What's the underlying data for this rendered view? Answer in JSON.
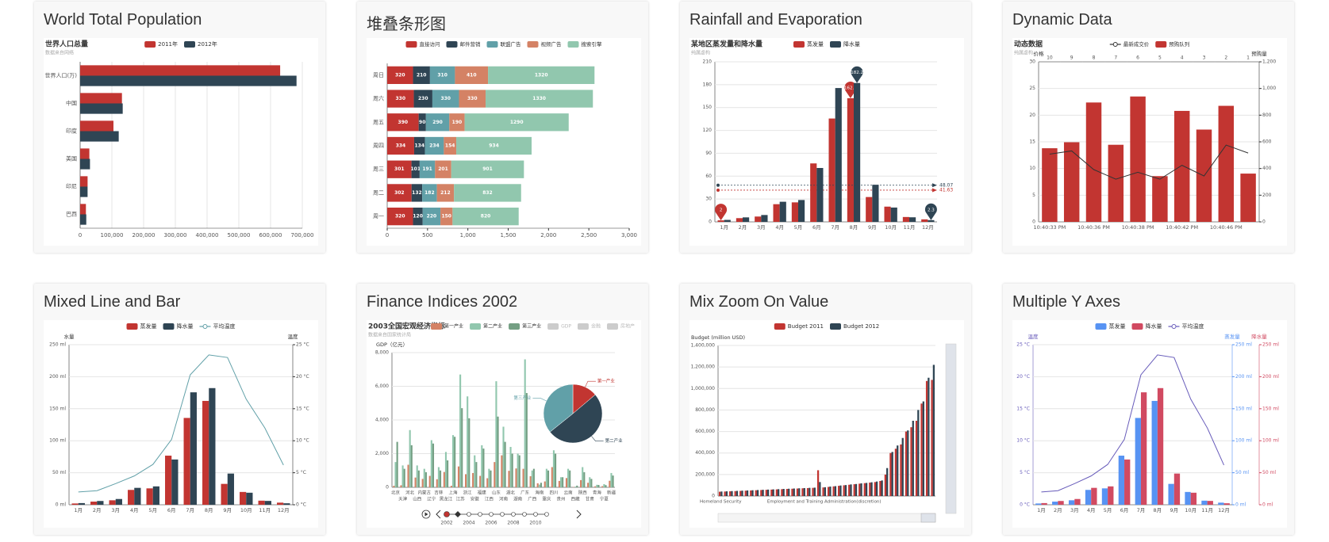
{
  "chart_data": [
    {
      "type": "bar",
      "heading": "World Total Population",
      "title": "世界人口总量",
      "subtitle": "数据来自网络",
      "horizontal": true,
      "grid": true,
      "categories": [
        "巴西",
        "印尼",
        "美国",
        "印度",
        "中国",
        "世界人口(万)"
      ],
      "series": [
        {
          "name": "2011年",
          "color": "#c23531",
          "values": [
            18203,
            23489,
            29034,
            104970,
            131744,
            630230
          ]
        },
        {
          "name": "2012年",
          "color": "#2f4554",
          "values": [
            19325,
            23438,
            31000,
            121594,
            134141,
            681807
          ]
        }
      ],
      "xlim": [
        0,
        700000
      ],
      "xticks": [
        0,
        {
          "value": 100000,
          "label": "100,000"
        },
        {
          "value": 200000,
          "label": "200,000"
        },
        {
          "value": 300000,
          "label": "300,000"
        },
        {
          "value": 400000,
          "label": "400,000"
        },
        {
          "value": 500000,
          "label": "500,000"
        },
        {
          "value": 600000,
          "label": "600,000"
        },
        {
          "value": 700000,
          "label": "700,000"
        }
      ]
    },
    {
      "type": "bar",
      "heading": "堆叠条形图",
      "horizontal": true,
      "stacked": true,
      "show_labels": true,
      "grid": false,
      "categories": [
        "周一",
        "周二",
        "周三",
        "周四",
        "周五",
        "周六",
        "周日"
      ],
      "series": [
        {
          "name": "直接访问",
          "color": "#c23531",
          "values": [
            320,
            302,
            301,
            334,
            390,
            330,
            320
          ]
        },
        {
          "name": "邮件营销",
          "color": "#2f4554",
          "values": [
            120,
            132,
            101,
            134,
            90,
            230,
            210
          ]
        },
        {
          "name": "联盟广告",
          "color": "#61a0a8",
          "values": [
            220,
            182,
            191,
            234,
            290,
            330,
            310
          ]
        },
        {
          "name": "视频广告",
          "color": "#d48265",
          "values": [
            150,
            212,
            201,
            154,
            190,
            330,
            410
          ]
        },
        {
          "name": "搜索引擎",
          "color": "#91c7ae",
          "values": [
            820,
            832,
            901,
            934,
            1290,
            1330,
            1320
          ]
        }
      ],
      "xlim": [
        0,
        3000
      ],
      "xticks": [
        0,
        500,
        {
          "value": 1000,
          "label": "1,000"
        },
        {
          "value": 1500,
          "label": "1,500"
        },
        {
          "value": 2000,
          "label": "2,000"
        },
        {
          "value": 2500,
          "label": "2,500"
        },
        {
          "value": 3000,
          "label": "3,000"
        }
      ]
    },
    {
      "type": "bar",
      "heading": "Rainfall and Evaporation",
      "title": "某地区蒸发量和降水量",
      "subtitle": "纯属虚构",
      "grid": true,
      "categories": [
        "1月",
        "2月",
        "3月",
        "4月",
        "5月",
        "6月",
        "7月",
        "8月",
        "9月",
        "10月",
        "11月",
        "12月"
      ],
      "series": [
        {
          "name": "蒸发量",
          "color": "#c23531",
          "values": [
            2.0,
            4.9,
            7.0,
            23.2,
            25.6,
            76.7,
            135.6,
            162.2,
            32.6,
            20.0,
            6.4,
            3.3
          ],
          "mark_points": [
            "max",
            "min"
          ],
          "average": 41.63
        },
        {
          "name": "降水量",
          "color": "#2f4554",
          "values": [
            2.6,
            5.9,
            9.0,
            26.4,
            28.7,
            70.7,
            175.6,
            182.2,
            48.7,
            18.8,
            6.0,
            2.3
          ],
          "mark_points": [
            "max",
            "min"
          ],
          "average": 48.07
        }
      ],
      "ylim": [
        0,
        210
      ],
      "yticks": [
        0,
        30,
        60,
        90,
        120,
        150,
        180,
        210
      ]
    },
    {
      "type": "bar",
      "heading": "Dynamic Data",
      "title": "动态数据",
      "subtitle": "纯属虚构",
      "grid": true,
      "categories": [
        "10:40:33 PM",
        null,
        "10:40:36 PM",
        null,
        "10:40:38 PM",
        null,
        "10:40:42 PM",
        null,
        "10:40:46 PM",
        null
      ],
      "top_categories": [
        10,
        9,
        8,
        7,
        6,
        5,
        4,
        3,
        2,
        1
      ],
      "series": [
        {
          "name": "最新成交价",
          "type": "line",
          "color": "#333333",
          "values": [
            12.7,
            13.3,
            9.8,
            8.0,
            9.3,
            8.0,
            10.6,
            8.6,
            14.4,
            12.9
          ]
        },
        {
          "name": "预购队列",
          "color": "#c23531",
          "axis": "y2",
          "values": [
            552,
            597,
            895,
            578,
            940,
            343,
            832,
            692,
            870,
            362
          ]
        }
      ],
      "y_name": "价格",
      "y2_name": "预购量",
      "ylim": [
        0,
        30
      ],
      "yticks": [
        0,
        5,
        10,
        15,
        20,
        25,
        30
      ],
      "y2lim": [
        0,
        1200
      ],
      "y2ticks": [
        0,
        200,
        400,
        600,
        800,
        {
          "value": 1000,
          "label": "1,000"
        },
        {
          "value": 1200,
          "label": "1,200"
        }
      ]
    },
    {
      "type": "bar",
      "heading": "Mixed Line and Bar",
      "grid": true,
      "categories": [
        "1月",
        "2月",
        "3月",
        "4月",
        "5月",
        "6月",
        "7月",
        "8月",
        "9月",
        "10月",
        "11月",
        "12月"
      ],
      "series": [
        {
          "name": "蒸发量",
          "color": "#c23531",
          "values": [
            2.0,
            4.9,
            7.0,
            23.2,
            25.6,
            76.7,
            135.6,
            162.2,
            32.6,
            20.0,
            6.4,
            3.3
          ]
        },
        {
          "name": "降水量",
          "color": "#2f4554",
          "values": [
            2.6,
            5.9,
            9.0,
            26.4,
            28.7,
            70.7,
            175.6,
            182.2,
            48.7,
            18.8,
            6.0,
            2.3
          ]
        },
        {
          "name": "平均温度",
          "type": "line",
          "color": "#61a0a8",
          "axis": "y2",
          "values": [
            2.0,
            2.2,
            3.3,
            4.5,
            6.3,
            10.2,
            20.3,
            23.4,
            23.0,
            16.5,
            12.0,
            6.2
          ]
        }
      ],
      "y_name": "水量",
      "y2_name": "温度",
      "ylim": [
        0,
        250
      ],
      "yticks": [
        {
          "value": 0,
          "label": "0 ml"
        },
        {
          "value": 50,
          "label": "50 ml"
        },
        {
          "value": 100,
          "label": "100 ml"
        },
        {
          "value": 150,
          "label": "150 ml"
        },
        {
          "value": 200,
          "label": "200 ml"
        },
        {
          "value": 250,
          "label": "250 ml"
        }
      ],
      "y2lim": [
        0,
        25
      ],
      "y2ticks": [
        {
          "value": 0,
          "label": "0 °C"
        },
        {
          "value": 5,
          "label": "5 °C"
        },
        {
          "value": 10,
          "label": "10 °C"
        },
        {
          "value": 15,
          "label": "15 °C"
        },
        {
          "value": 20,
          "label": "20 °C"
        },
        {
          "value": 25,
          "label": "25 °C"
        }
      ]
    },
    {
      "type": "bar",
      "heading": "Finance Indices 2002",
      "title": "2003全国宏观经济指标",
      "subtitle": "数据来自国家统计局",
      "grid": true,
      "categories": [
        "北京",
        "天津",
        "河北",
        "山西",
        "内蒙古",
        "辽宁",
        "吉林",
        "黑龙江",
        "上海",
        "江苏",
        "浙江",
        "安徽",
        "福建",
        "江西",
        "山东",
        "河南",
        "湖北",
        "湖南",
        "广东",
        "广西",
        "海南",
        "重庆",
        "四川",
        "贵州",
        "云南",
        "西藏",
        "陕西",
        "甘肃",
        "青海",
        "宁夏",
        "新疆"
      ],
      "series": [
        {
          "name": "第一产业",
          "color": "#d48265",
          "values": [
            90,
            120,
            1340,
            580,
            500,
            680,
            480,
            910,
            90,
            1240,
            780,
            850,
            680,
            540,
            1500,
            1900,
            980,
            1120,
            1100,
            660,
            240,
            350,
            1200,
            380,
            550,
            20,
            430,
            270,
            60,
            70,
            390
          ]
        },
        {
          "name": "第二产业",
          "color": "#91c7ae",
          "values": [
            1500,
            1300,
            3400,
            1300,
            1100,
            2800,
            1200,
            2100,
            3100,
            6700,
            5400,
            1900,
            2500,
            1100,
            6300,
            3600,
            2400,
            2000,
            7600,
            1000,
            160,
            1100,
            2200,
            600,
            1100,
            40,
            1200,
            600,
            150,
            190,
            850
          ]
        },
        {
          "name": "第三产业",
          "color": "#749f83",
          "values": [
            2700,
            1100,
            2500,
            1000,
            900,
            2600,
            1000,
            1600,
            3000,
            4700,
            4100,
            1500,
            2300,
            1000,
            4200,
            2700,
            2000,
            1900,
            5600,
            1100,
            270,
            1000,
            2000,
            600,
            1000,
            100,
            900,
            500,
            140,
            130,
            700
          ]
        }
      ],
      "legend_extra": [
        "GDP",
        "金融",
        "房地产"
      ],
      "y_name": "GDP（亿元）",
      "ylim": [
        0,
        8000
      ],
      "yticks": [
        0,
        {
          "value": 2000,
          "label": "2,000"
        },
        {
          "value": 4000,
          "label": "4,000"
        },
        {
          "value": 6000,
          "label": "6,000"
        },
        {
          "value": 8000,
          "label": "8,000"
        }
      ],
      "pie": {
        "labels": [
          "第一产业",
          "第二产业",
          "第三产业"
        ],
        "values": [
          17000,
          62000,
          44000
        ],
        "colors": [
          "#c23531",
          "#2f4554",
          "#61a0a8"
        ]
      },
      "timeline": {
        "labels": [
          2002,
          null,
          2004,
          null,
          2006,
          null,
          2008,
          null,
          2010,
          null
        ],
        "current": 1
      }
    },
    {
      "type": "bar",
      "heading": "Mix Zoom On Value",
      "grid": true,
      "data_zoom": true,
      "categories": [
        "Homeland Security",
        null,
        null,
        null,
        null,
        null,
        null,
        null,
        null,
        null,
        null,
        null,
        null,
        null,
        null,
        null,
        null,
        null,
        null,
        null,
        "Employment and Training Administration(discretion)",
        null,
        null,
        null,
        null,
        null,
        null,
        null,
        null,
        null,
        null,
        null,
        null,
        null,
        null,
        null,
        null,
        null,
        null,
        null,
        null,
        null
      ],
      "series": [
        {
          "name": "Budget 2011",
          "color": "#c23531",
          "values": [
            40000,
            42000,
            44000,
            46000,
            48000,
            50000,
            52000,
            54000,
            56000,
            58000,
            60000,
            62000,
            64000,
            66000,
            68000,
            70000,
            72000,
            74000,
            76000,
            240000,
            80000,
            85000,
            90000,
            95000,
            100000,
            105000,
            110000,
            115000,
            120000,
            125000,
            130000,
            140000,
            200000,
            400000,
            440000,
            480000,
            600000,
            640000,
            700000,
            860000,
            1070000,
            1080000
          ]
        },
        {
          "name": "Budget 2012",
          "color": "#2f4554",
          "values": [
            42000,
            44000,
            46000,
            48000,
            50000,
            52000,
            54000,
            56000,
            58000,
            60000,
            62000,
            64000,
            66000,
            68000,
            70000,
            72000,
            74000,
            76000,
            78000,
            130000,
            82000,
            88000,
            92000,
            98000,
            102000,
            108000,
            112000,
            118000,
            122000,
            128000,
            135000,
            145000,
            260000,
            410000,
            470000,
            540000,
            610000,
            700000,
            800000,
            880000,
            1100000,
            1220000
          ]
        }
      ],
      "y_name": "Budget (million USD)",
      "ylim": [
        0,
        1400000
      ],
      "yticks": [
        0,
        {
          "value": 200000,
          "label": "200,000"
        },
        {
          "value": 400000,
          "label": "400,000"
        },
        {
          "value": 600000,
          "label": "600,000"
        },
        {
          "value": 800000,
          "label": "800,000"
        },
        {
          "value": 1000000,
          "label": "1,000,000"
        },
        {
          "value": 1200000,
          "label": "1,200,000"
        },
        {
          "value": 1400000,
          "label": "1,400,000"
        }
      ]
    },
    {
      "type": "bar",
      "heading": "Multiple Y Axes",
      "grid": true,
      "categories": [
        "1月",
        "2月",
        "3月",
        "4月",
        "5月",
        "6月",
        "7月",
        "8月",
        "9月",
        "10月",
        "11月",
        "12月"
      ],
      "series": [
        {
          "name": "蒸发量",
          "color": "#5793f3",
          "axis": "y2",
          "values": [
            2.0,
            4.9,
            7.0,
            23.2,
            25.6,
            76.7,
            135.6,
            162.2,
            32.6,
            20.0,
            6.4,
            3.3
          ]
        },
        {
          "name": "降水量",
          "color": "#d14a61",
          "axis": "y3",
          "values": [
            2.6,
            5.9,
            9.0,
            26.4,
            28.7,
            70.7,
            175.6,
            182.2,
            48.7,
            18.8,
            6.0,
            2.3
          ]
        },
        {
          "name": "平均温度",
          "type": "line",
          "color": "#675bba",
          "values": [
            2.0,
            2.2,
            3.3,
            4.5,
            6.3,
            10.2,
            20.3,
            23.4,
            23.0,
            16.5,
            12.0,
            6.2
          ]
        }
      ],
      "y_name": "温度",
      "y2_name": "蒸发量",
      "y3_name": "降水量",
      "axis_colors": {
        "y": "#675bba",
        "y2": "#5793f3",
        "y3": "#d14a61"
      },
      "ylim": [
        0,
        25
      ],
      "yticks": [
        {
          "value": 0,
          "label": "0 °C"
        },
        {
          "value": 5,
          "label": "5 °C"
        },
        {
          "value": 10,
          "label": "10 °C"
        },
        {
          "value": 15,
          "label": "15 °C"
        },
        {
          "value": 20,
          "label": "20 °C"
        },
        {
          "value": 25,
          "label": "25 °C"
        }
      ],
      "y2lim": [
        0,
        250
      ],
      "y2ticks": [
        {
          "value": 0,
          "label": "0 ml"
        },
        {
          "value": 50,
          "label": "50 ml"
        },
        {
          "value": 100,
          "label": "100 ml"
        },
        {
          "value": 150,
          "label": "150 ml"
        },
        {
          "value": 200,
          "label": "200 ml"
        },
        {
          "value": 250,
          "label": "250 ml"
        }
      ],
      "y3lim": [
        0,
        250
      ],
      "y3ticks": [
        {
          "value": 0,
          "label": "0 ml"
        },
        {
          "value": 50,
          "label": "50 ml"
        },
        {
          "value": 100,
          "label": "100 ml"
        },
        {
          "value": 150,
          "label": "150 ml"
        },
        {
          "value": 200,
          "label": "200 ml"
        },
        {
          "value": 250,
          "label": "250 ml"
        }
      ]
    }
  ]
}
